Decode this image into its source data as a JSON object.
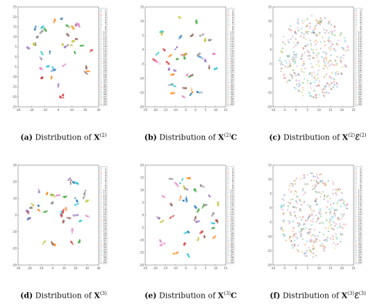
{
  "palette": [
    "#1f77b4",
    "#ff7f0e",
    "#d62728",
    "#9467bd",
    "#2ca02c",
    "#17becf",
    "#8c564b",
    "#e377c2",
    "#bcbd22",
    "#7f7f7f"
  ],
  "legend_labels": [
    "1",
    "2",
    "3",
    "4",
    "5",
    "6",
    "7",
    "8",
    "9",
    "10",
    "11",
    "12",
    "13",
    "14",
    "15",
    "16",
    "17",
    "18",
    "19",
    "20",
    "21",
    "22",
    "23",
    "24",
    "25",
    "26",
    "27",
    "28",
    "29",
    "30",
    "31",
    "32",
    "33",
    "34",
    "35",
    "36",
    "37",
    "38",
    "39",
    "40"
  ],
  "panels": [
    {
      "id": "a",
      "caption": {
        "label": "(a)",
        "text": "Distribution of",
        "matrix": "X",
        "superscript": "(2)",
        "suffix": "",
        "suffix_sup": ""
      },
      "chart_data": {
        "type": "scatter",
        "style": "clustered",
        "n_classes": 40,
        "x_ticks": [
          "-30",
          "-20",
          "-10",
          "0",
          "10",
          "20",
          "30"
        ],
        "xlim": [
          -30,
          30
        ],
        "y_ticks": [
          "-25",
          "-20",
          "-15",
          "-10",
          "-5",
          "0",
          "5",
          "10",
          "15",
          "20",
          "25"
        ],
        "ylim": [
          -25,
          25
        ],
        "legend": "right"
      }
    },
    {
      "id": "b",
      "caption": {
        "label": "(b)",
        "text": "Distribution of",
        "matrix": "X",
        "superscript": "(2)",
        "suffix": "C",
        "suffix_sup": ""
      },
      "chart_data": {
        "type": "scatter",
        "style": "clustered",
        "n_classes": 40,
        "x_ticks": [
          "-25",
          "-20",
          "-15",
          "-10",
          "-5",
          "0",
          "5",
          "10",
          "15"
        ],
        "xlim": [
          -25,
          15
        ],
        "y_ticks": [
          "-20",
          "-15",
          "-10",
          "-5",
          "0",
          "5",
          "10",
          "15"
        ],
        "ylim": [
          -20,
          15
        ],
        "legend": "right"
      }
    },
    {
      "id": "c",
      "caption": {
        "label": "(c)",
        "text": "Distribution of",
        "matrix": "X",
        "superscript": "(2)",
        "suffix": "ℰ",
        "suffix_sup": "(2)"
      },
      "chart_data": {
        "type": "scatter",
        "style": "diffuse",
        "n_classes": 40,
        "x_ticks": [
          "-10",
          "-5",
          "0",
          "5",
          "10",
          "15",
          "20",
          "25"
        ],
        "xlim": [
          -10,
          25
        ],
        "y_ticks": [
          "-20",
          "-15",
          "-10",
          "-5",
          "0",
          "5",
          "10",
          "15"
        ],
        "ylim": [
          -20,
          15
        ],
        "legend": "right"
      }
    },
    {
      "id": "d",
      "caption": {
        "label": "(d)",
        "text": "Distribution of",
        "matrix": "X",
        "superscript": "(3)",
        "suffix": "",
        "suffix_sup": ""
      },
      "chart_data": {
        "type": "scatter",
        "style": "clustered",
        "n_classes": 40,
        "x_ticks": [
          "-30",
          "-20",
          "-10",
          "0",
          "10",
          "20",
          "30",
          "40"
        ],
        "xlim": [
          -30,
          40
        ],
        "y_ticks": [
          "-30",
          "-20",
          "-10",
          "0",
          "10",
          "20",
          "30"
        ],
        "ylim": [
          -30,
          30
        ],
        "legend": "right"
      }
    },
    {
      "id": "e",
      "caption": {
        "label": "(e)",
        "text": "Distribution of",
        "matrix": "X",
        "superscript": "(3)",
        "suffix": "C",
        "suffix_sup": ""
      },
      "chart_data": {
        "type": "scatter",
        "style": "clustered",
        "n_classes": 40,
        "x_ticks": [
          "-25",
          "-20",
          "-15",
          "-10",
          "-5",
          "0",
          "5",
          "10",
          "15"
        ],
        "xlim": [
          -25,
          15
        ],
        "y_ticks": [
          "-20",
          "-15",
          "-10",
          "-5",
          "0",
          "5",
          "10",
          "15",
          "20"
        ],
        "ylim": [
          -20,
          20
        ],
        "legend": "right"
      }
    },
    {
      "id": "f",
      "caption": {
        "label": "(f)",
        "text": "Distribution of",
        "matrix": "X",
        "superscript": "(3)",
        "suffix": "ℰ",
        "suffix_sup": "(3)"
      },
      "chart_data": {
        "type": "scatter",
        "style": "diffuse",
        "n_classes": 40,
        "x_ticks": [
          "-10",
          "-5",
          "0",
          "5",
          "10",
          "15",
          "20",
          "25"
        ],
        "xlim": [
          -10,
          25
        ],
        "y_ticks": [
          "-20",
          "-15",
          "-10",
          "-5",
          "0",
          "5",
          "10",
          "15"
        ],
        "ylim": [
          -20,
          15
        ],
        "legend": "right"
      }
    }
  ]
}
